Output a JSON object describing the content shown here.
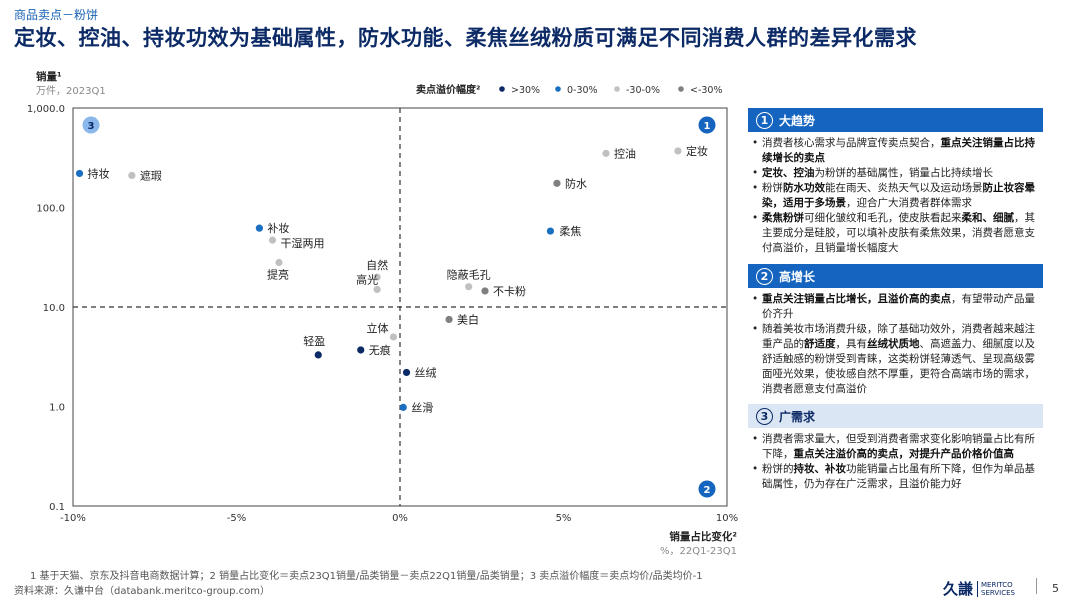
{
  "breadcrumb": "商品卖点－粉饼",
  "title": "定妆、控油、持妆功效为基础属性，防水功能、柔焦丝绒粉质可满足不同消费人群的差异化需求",
  "chart_data": {
    "type": "scatter",
    "y_label": "销量¹",
    "y_unit": "万件，2023Q1",
    "x_label": "销量占比变化²",
    "x_unit": "%，22Q1-23Q1",
    "x_range": [
      -10,
      10
    ],
    "y_range_log": [
      0.1,
      1000
    ],
    "x_ticks": [
      "-10%",
      "-5%",
      "0%",
      "5%",
      "10%"
    ],
    "y_ticks": [
      "1,000.0",
      "100.0",
      "10.0",
      "1.0",
      "0.1"
    ],
    "divider_x": 0,
    "divider_y": 10,
    "legend": {
      "title": "卖点溢价幅度²",
      "items": [
        {
          "label": ">30%",
          "color": "#0c2a66"
        },
        {
          "label": "0-30%",
          "color": "#1a6fc0"
        },
        {
          "label": "-30-0%",
          "color": "#c0c0c0"
        },
        {
          "label": "<-30%",
          "color": "#7f7f7f"
        }
      ]
    },
    "quadrants": [
      "3",
      "1",
      "2"
    ],
    "points": [
      {
        "label": "持妆",
        "x": -9.8,
        "y": 220,
        "cat": 1
      },
      {
        "label": "遮瑕",
        "x": -8.2,
        "y": 210,
        "cat": 2
      },
      {
        "label": "定妆",
        "x": 8.5,
        "y": 370,
        "cat": 2
      },
      {
        "label": "控油",
        "x": 6.3,
        "y": 350,
        "cat": 2
      },
      {
        "label": "防水",
        "x": 4.8,
        "y": 175,
        "cat": 3
      },
      {
        "label": "柔焦",
        "x": 4.6,
        "y": 58,
        "cat": 1
      },
      {
        "label": "补妆",
        "x": -4.3,
        "y": 62,
        "cat": 1
      },
      {
        "label": "干湿两用",
        "x": -3.9,
        "y": 47,
        "cat": 2
      },
      {
        "label": "提亮",
        "x": -3.7,
        "y": 28,
        "cat": 2
      },
      {
        "label": "自然",
        "x": -0.7,
        "y": 20,
        "cat": 2
      },
      {
        "label": "高光",
        "x": -0.7,
        "y": 15,
        "cat": 2
      },
      {
        "label": "隐蔽毛孔",
        "x": 2.1,
        "y": 16,
        "cat": 2
      },
      {
        "label": "不卡粉",
        "x": 2.6,
        "y": 14.5,
        "cat": 3
      },
      {
        "label": "美白",
        "x": 1.5,
        "y": 7.5,
        "cat": 3
      },
      {
        "label": "立体",
        "x": -0.2,
        "y": 5,
        "cat": 2
      },
      {
        "label": "轻盈",
        "x": -2.5,
        "y": 3.3,
        "cat": 0
      },
      {
        "label": "无痕",
        "x": -1.2,
        "y": 3.7,
        "cat": 0
      },
      {
        "label": "丝绒",
        "x": 0.2,
        "y": 2.2,
        "cat": 0
      },
      {
        "label": "丝滑",
        "x": 0.1,
        "y": 0.98,
        "cat": 1
      }
    ]
  },
  "panels": [
    {
      "num": "1",
      "title": "大趋势",
      "items": [
        [
          {
            "t": "消费者核心需求与品牌宣传卖点契合，"
          },
          {
            "t": "重点关注销量占比持续增长的卖点",
            "b": true
          }
        ],
        [
          {
            "t": "定妆、控油",
            "b": true
          },
          {
            "t": "为粉饼的基础属性，销量占比持续增长"
          }
        ],
        [
          {
            "t": "粉饼"
          },
          {
            "t": "防水功效",
            "b": true
          },
          {
            "t": "能在雨天、炎热天气以及运动场景"
          },
          {
            "t": "防止妆容晕染，适用于多场景",
            "b": true
          },
          {
            "t": "，迎合广大消费者群体需求"
          }
        ],
        [
          {
            "t": "柔焦粉饼",
            "b": true
          },
          {
            "t": "可细化皱纹和毛孔，使皮肤看起来"
          },
          {
            "t": "柔和、细腻",
            "b": true
          },
          {
            "t": "，其主要成分是硅胶，可以填补皮肤有柔焦效果，消费者愿意支付高溢价，且销量增长幅度大"
          }
        ]
      ]
    },
    {
      "num": "2",
      "title": "高增长",
      "items": [
        [
          {
            "t": "重点关注销量占比增长，且溢价高的卖点",
            "b": true
          },
          {
            "t": "，有望带动产品量价齐升"
          }
        ],
        [
          {
            "t": "随着美妆市场消费升级，除了基础功效外，消费者越来越注重产品的"
          },
          {
            "t": "舒适度",
            "b": true
          },
          {
            "t": "，具有"
          },
          {
            "t": "丝绒状质地",
            "b": true
          },
          {
            "t": "、高遮盖力、细腻度以及舒适触感的粉饼受到青睐，这类粉饼轻薄透气、呈现高级雾面哑光效果，使妆感自然不厚重，更符合高端市场的需求，消费者愿意支付高溢价"
          }
        ]
      ]
    },
    {
      "num": "3",
      "title": "广需求",
      "items": [
        [
          {
            "t": "消费者需求量大，但受到消费者需求变化影响销量占比有所下降，"
          },
          {
            "t": "重点关注溢价高的卖点，对提升产品价格价值高",
            "b": true
          }
        ],
        [
          {
            "t": "粉饼的"
          },
          {
            "t": "持妆、补妆",
            "b": true
          },
          {
            "t": "功能销量占比虽有所下降，但作为单品基础属性，仍为存在广泛需求，且溢价能力好"
          }
        ]
      ]
    }
  ],
  "footnote": "1  基于天猫、京东及抖音电商数据计算；2  销量占比变化＝卖点23Q1销量/品类销量－卖点22Q1销量/品类销量；3  卖点溢价幅度＝卖点均价/品类均价-1",
  "source": "资料来源：久谦中台（databank.meritco-group.com）",
  "logo": {
    "cn": "久謙",
    "en1": "MERITCO",
    "en2": "SERVICES"
  },
  "page_number": "5"
}
